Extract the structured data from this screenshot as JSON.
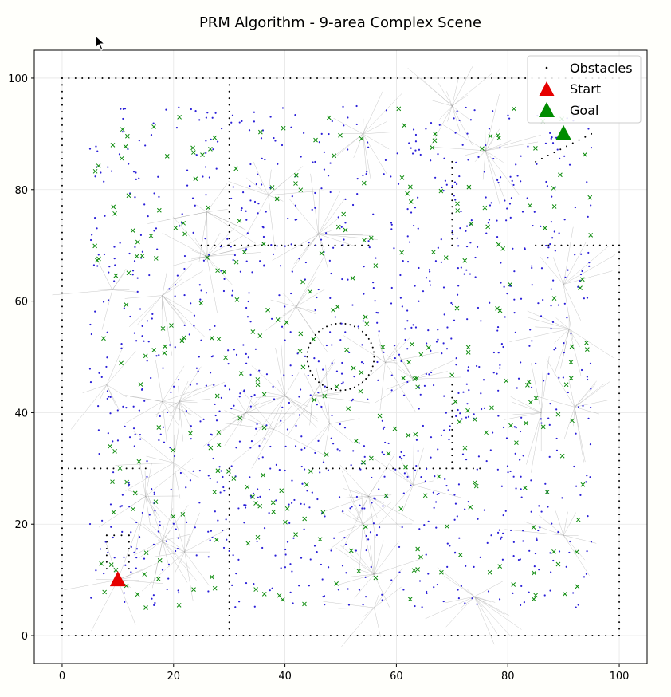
{
  "chart_data": {
    "type": "scatter",
    "title": "PRM Algorithm - 9-area Complex Scene",
    "xlabel": "",
    "ylabel": "",
    "xlim": [
      -5,
      105
    ],
    "ylim": [
      -5,
      105
    ],
    "xticks": [
      0,
      20,
      40,
      60,
      80,
      100
    ],
    "yticks": [
      0,
      20,
      40,
      60,
      80,
      100
    ],
    "grid": true,
    "legend_position": "top-right",
    "legend": [
      {
        "label": "Obstacles",
        "marker": "dot",
        "color": "#000000"
      },
      {
        "label": "Start",
        "marker": "triangle",
        "color": "#e60000"
      },
      {
        "label": "Goal",
        "marker": "triangle",
        "color": "#008c00"
      }
    ],
    "start": {
      "x": 10,
      "y": 10
    },
    "goal": {
      "x": 90,
      "y": 90
    },
    "obstacles": {
      "segments": [
        {
          "x1": 0,
          "y1": 0,
          "x2": 100,
          "y2": 0
        },
        {
          "x1": 0,
          "y1": 100,
          "x2": 100,
          "y2": 100
        },
        {
          "x1": 0,
          "y1": 0,
          "x2": 0,
          "y2": 100
        },
        {
          "x1": 100,
          "y1": 0,
          "x2": 100,
          "y2": 70
        },
        {
          "x1": 30,
          "y1": 70,
          "x2": 30,
          "y2": 100
        },
        {
          "x1": 25,
          "y1": 70,
          "x2": 55,
          "y2": 70
        },
        {
          "x1": 85,
          "y1": 70,
          "x2": 100,
          "y2": 70
        },
        {
          "x1": 0,
          "y1": 30,
          "x2": 15,
          "y2": 30
        },
        {
          "x1": 30,
          "y1": 0,
          "x2": 30,
          "y2": 30
        },
        {
          "x1": 45,
          "y1": 30,
          "x2": 75,
          "y2": 30
        },
        {
          "x1": 70,
          "y1": 30,
          "x2": 70,
          "y2": 45
        },
        {
          "x1": 70,
          "y1": 70,
          "x2": 70,
          "y2": 85
        },
        {
          "x1": 85,
          "y1": 85,
          "x2": 95,
          "y2": 90
        },
        {
          "x1": 8,
          "y1": 12,
          "x2": 8,
          "y2": 18
        },
        {
          "x1": 8,
          "y1": 18,
          "x2": 12,
          "y2": 18
        },
        {
          "x1": 12,
          "y1": 12,
          "x2": 12,
          "y2": 18
        }
      ],
      "circle": {
        "cx": 50,
        "cy": 50,
        "r": 6
      }
    },
    "samples": {
      "valid_count": 1200,
      "collision_count": 300,
      "x_range": [
        5,
        95
      ],
      "y_range": [
        5,
        95
      ]
    },
    "roadmap_hubs": [
      [
        10,
        10
      ],
      [
        18,
        17
      ],
      [
        22,
        15
      ],
      [
        15,
        25
      ],
      [
        20,
        31
      ],
      [
        8,
        45
      ],
      [
        18,
        42
      ],
      [
        21,
        42
      ],
      [
        9,
        62
      ],
      [
        18,
        61
      ],
      [
        26,
        68
      ],
      [
        26,
        76
      ],
      [
        37,
        79
      ],
      [
        46,
        72
      ],
      [
        42,
        59
      ],
      [
        33,
        40
      ],
      [
        38,
        37
      ],
      [
        40,
        43
      ],
      [
        45,
        43
      ],
      [
        48,
        38
      ],
      [
        58,
        49
      ],
      [
        63,
        46
      ],
      [
        55,
        25
      ],
      [
        54,
        20
      ],
      [
        63,
        27
      ],
      [
        56,
        5
      ],
      [
        56,
        11
      ],
      [
        74,
        7
      ],
      [
        70,
        95
      ],
      [
        76,
        87
      ],
      [
        54,
        90
      ],
      [
        90,
        63
      ],
      [
        91,
        55
      ],
      [
        86,
        40
      ],
      [
        90,
        18
      ],
      [
        92,
        41
      ]
    ]
  },
  "colors": {
    "valid": "#2a1fd8",
    "collision": "#0a8a0a",
    "obstacle": "#000000",
    "edge": "#808080"
  }
}
